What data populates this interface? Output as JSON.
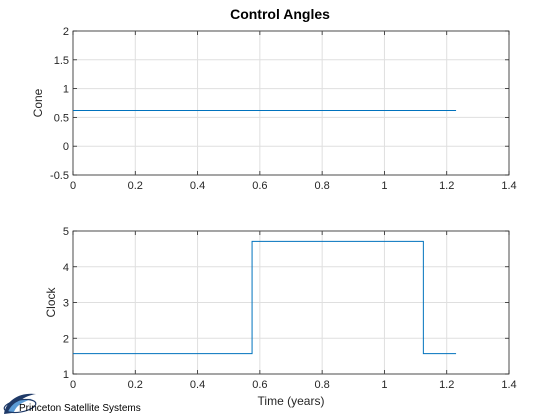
{
  "figure": {
    "title": "Control Angles",
    "logo_text": "Princeton Satellite Systems"
  },
  "colors": {
    "line": "#0072BD",
    "grid": "#DFDFDF",
    "axis": "#262626",
    "logo_dark": "#1F3A68",
    "logo_light": "#5B9BD5"
  },
  "icons": {
    "logo": "psss-swoosh-logo"
  },
  "chart_data": [
    {
      "type": "line",
      "title": "Control Angles",
      "xlabel": "",
      "ylabel": "Cone",
      "xlim": [
        0,
        1.4
      ],
      "ylim": [
        -0.5,
        2
      ],
      "xticks": [
        "0",
        "0.2",
        "0.4",
        "0.6",
        "0.8",
        "1",
        "1.2",
        "1.4"
      ],
      "yticks": [
        "-0.5",
        "0",
        "0.5",
        "1",
        "1.5",
        "2"
      ],
      "grid": true,
      "series": [
        {
          "x": [
            0,
            1.23
          ],
          "y": [
            0.62,
            0.62
          ]
        }
      ]
    },
    {
      "type": "line",
      "xlabel": "Time (years)",
      "ylabel": "Clock",
      "xlim": [
        0,
        1.4
      ],
      "ylim": [
        1,
        5
      ],
      "xticks": [
        "0",
        "0.2",
        "0.4",
        "0.6",
        "0.8",
        "1",
        "1.2",
        "1.4"
      ],
      "yticks": [
        "1",
        "2",
        "3",
        "4",
        "5"
      ],
      "grid": true,
      "series": [
        {
          "x": [
            0,
            0.575,
            0.575,
            1.125,
            1.125,
            1.23
          ],
          "y": [
            1.57,
            1.57,
            4.71,
            4.71,
            1.57,
            1.57
          ]
        }
      ]
    }
  ]
}
